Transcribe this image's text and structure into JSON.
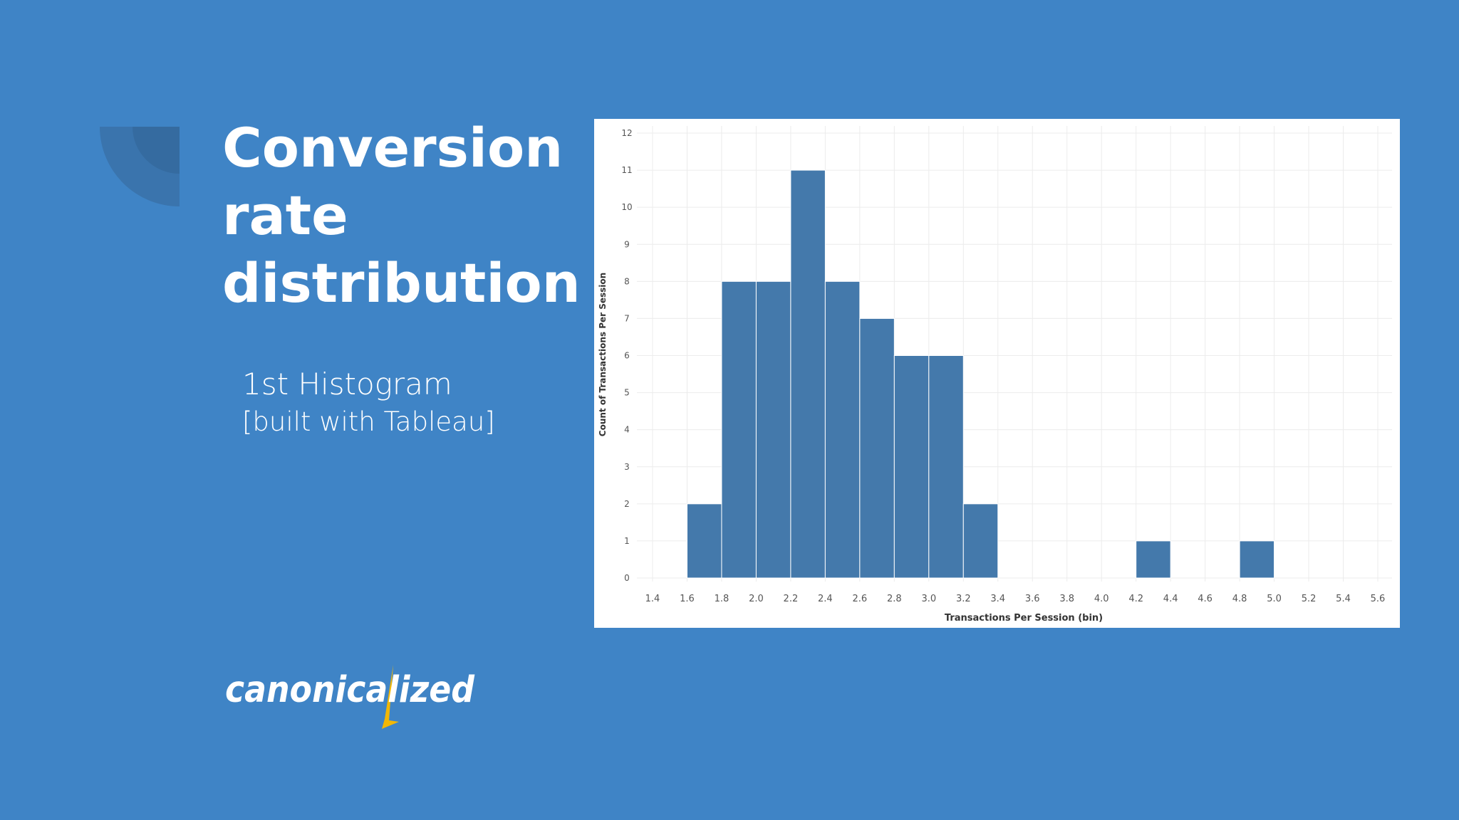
{
  "slide": {
    "title_lines": [
      "Conversion",
      "rate",
      "distribution"
    ],
    "subtitle_line1": "1st Histogram",
    "subtitle_line2": "[built with Tableau]",
    "logo_text": "canonicalized"
  },
  "colors": {
    "background": "#3f84c6",
    "bar": "#4479ab",
    "logo_accent": "#f2b705"
  },
  "chart_data": {
    "type": "bar",
    "xlabel": "Transactions Per Session (bin)",
    "ylabel": "Count of Transactions Per Session",
    "x_ticks": [
      "1.4",
      "1.6",
      "1.8",
      "2.0",
      "2.2",
      "2.4",
      "2.6",
      "2.8",
      "3.0",
      "3.2",
      "3.4",
      "3.6",
      "3.8",
      "4.0",
      "4.2",
      "4.4",
      "4.6",
      "4.8",
      "5.0",
      "5.2",
      "5.4",
      "5.6"
    ],
    "y_ticks": [
      "0",
      "1",
      "2",
      "3",
      "4",
      "5",
      "6",
      "7",
      "8",
      "9",
      "10",
      "11",
      "12"
    ],
    "bins": [
      {
        "start": 1.6,
        "end": 1.8,
        "count": 2
      },
      {
        "start": 1.8,
        "end": 2.0,
        "count": 8
      },
      {
        "start": 2.0,
        "end": 2.2,
        "count": 8
      },
      {
        "start": 2.2,
        "end": 2.4,
        "count": 11
      },
      {
        "start": 2.4,
        "end": 2.6,
        "count": 8
      },
      {
        "start": 2.6,
        "end": 2.8,
        "count": 7
      },
      {
        "start": 2.8,
        "end": 3.0,
        "count": 6
      },
      {
        "start": 3.0,
        "end": 3.2,
        "count": 6
      },
      {
        "start": 3.2,
        "end": 3.4,
        "count": 2
      },
      {
        "start": 4.2,
        "end": 4.4,
        "count": 1
      },
      {
        "start": 4.8,
        "end": 5.0,
        "count": 1
      }
    ],
    "ylim": [
      0,
      12
    ],
    "grid": true
  }
}
